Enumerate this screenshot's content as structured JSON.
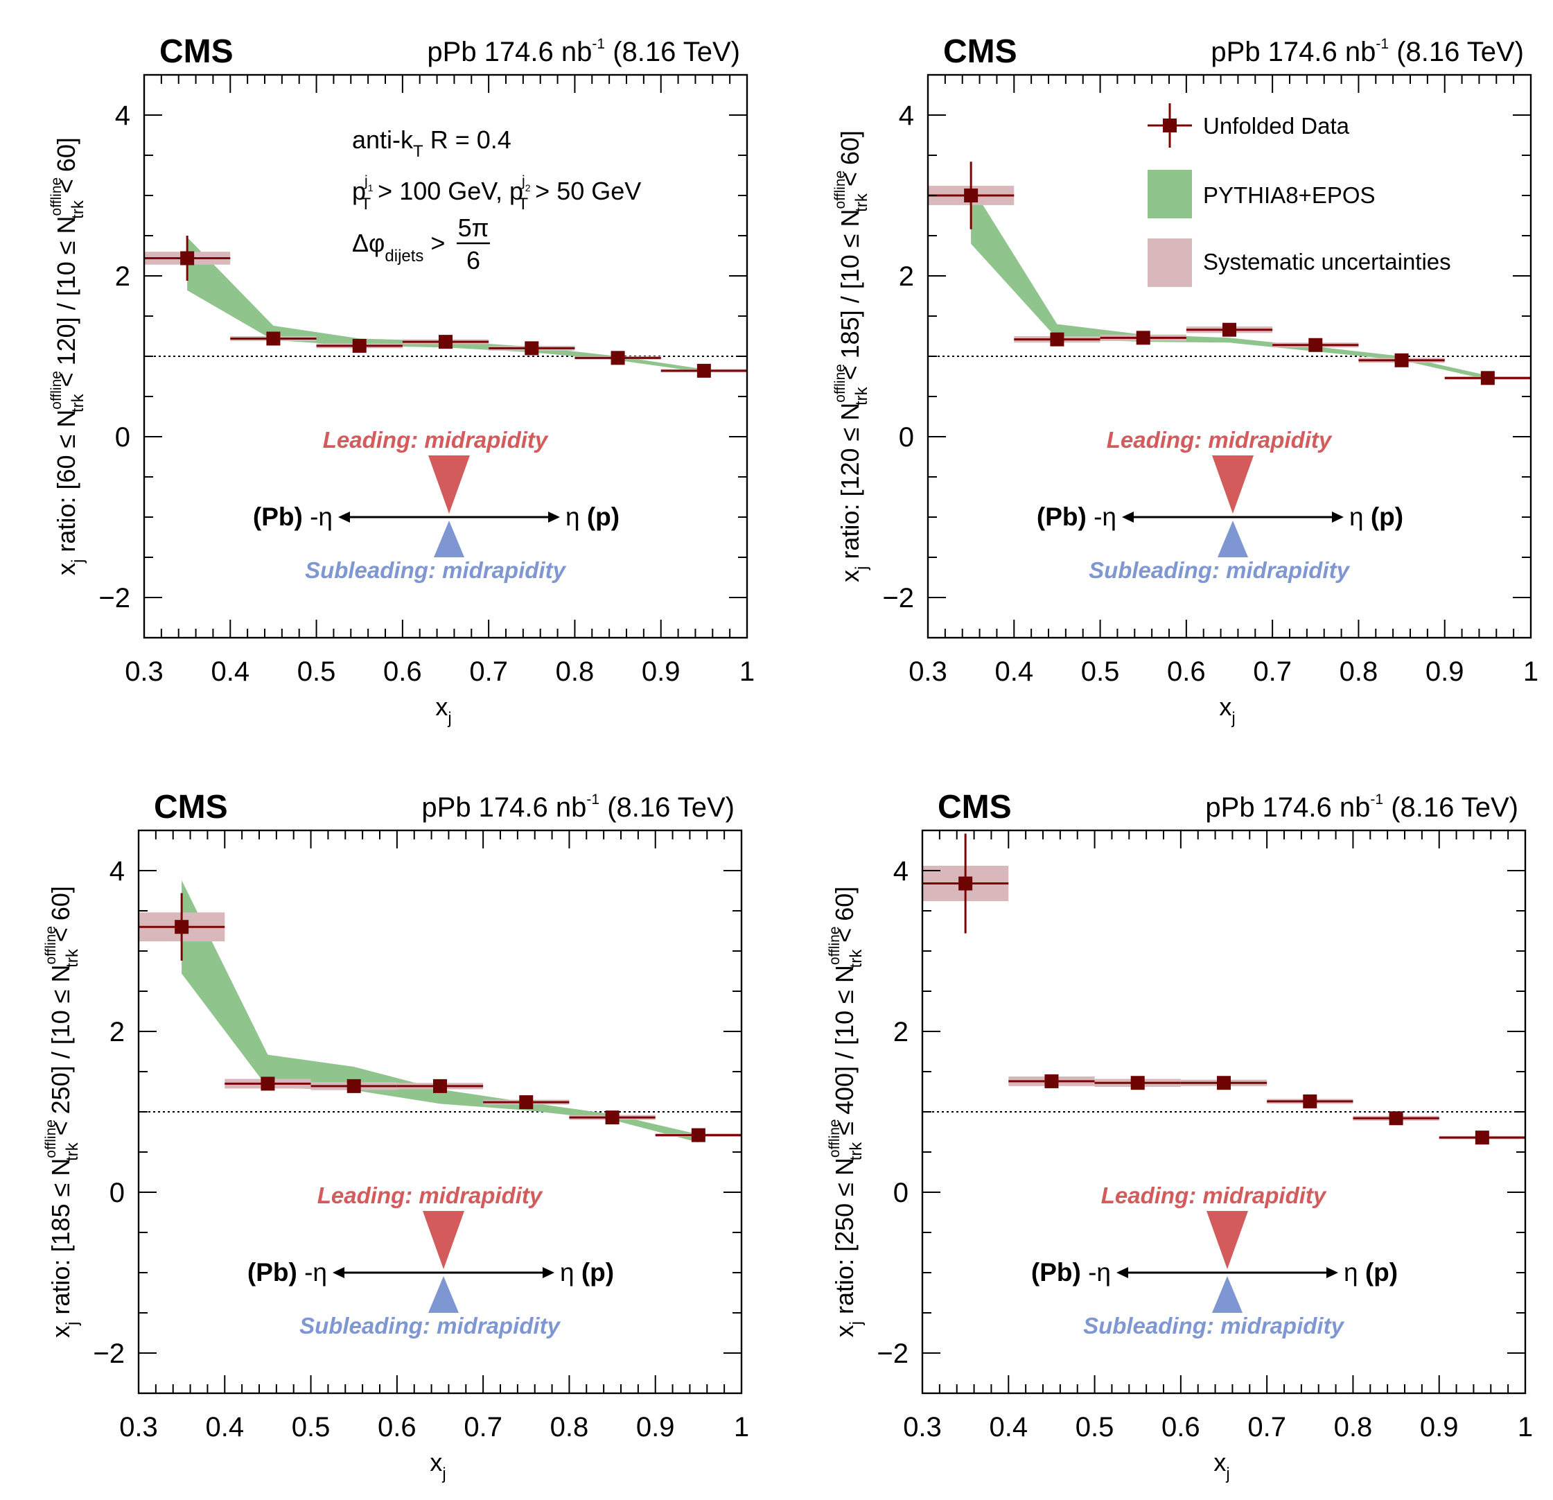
{
  "texts": {
    "cms": "CMS",
    "lumi_pre": "pPb 174.6 nb",
    "lumi_sup": "-1",
    "lumi_post": "(8.16 TeV)",
    "xlabel_main": "x",
    "xlabel_sub": "j",
    "ylabel_panels": [
      [
        "60 ≤ N",
        "offline",
        "trk",
        " < 120] / [10 ≤ N",
        "offline",
        "trk",
        " < 60]"
      ],
      [
        "120 ≤ N",
        "offline",
        "trk",
        " < 185] / [10 ≤ N",
        "offline",
        "trk",
        " < 60]"
      ],
      [
        "185 ≤ N",
        "offline",
        "trk",
        " < 250] / [10 ≤ N",
        "offline",
        "trk",
        " < 60]"
      ],
      [
        "250 ≤ N",
        "offline",
        "trk",
        " ≤ 400] / [10 ≤ N",
        "offline",
        "trk",
        " < 60]"
      ]
    ],
    "ylabel_prefix_main": "x",
    "ylabel_prefix_sub": "j",
    "ylabel_prefix_rest": " ratio: [",
    "jet_algo_pre": "anti-k",
    "jet_algo_sub": "T",
    "jet_algo_post": " R = 0.4",
    "pt_p": "p",
    "pt_sub": "T",
    "pt_sup1": "j",
    "pt_sup1_sub": "1",
    "pt_cut1": " > 100 GeV, ",
    "pt_sup2": "j",
    "pt_sup2_sub": "2",
    "pt_cut2": " > 50 GeV",
    "dphi_pre": "Δφ",
    "dphi_sub": "dijets",
    "dphi_gt": " >",
    "dphi_num": "5π",
    "dphi_den": "6",
    "leading": "Leading: midrapidity",
    "subleading": "Subleading: midrapidity",
    "pb_side_bold": "(Pb)",
    "pb_side_eta": " -η",
    "p_side_eta": "η ",
    "p_side_bold": "(p)"
  },
  "colors": {
    "data": "#6e0303",
    "mc_band": "#8fc48c",
    "syst": "#d9b8bc",
    "leading": "#d35b5b",
    "subleading": "#7e97d2"
  },
  "chart_data": [
    {
      "type": "scatter",
      "xlabel": "x_j",
      "ylabel": "x_j ratio: [60 ≤ N_trk^offline < 120] / [10 ≤ N_trk^offline < 60]",
      "xlim": [
        0.3,
        1.0
      ],
      "ylim": [
        -2.5,
        4.5
      ],
      "xticks": [
        "0.3",
        "0.4",
        "0.5",
        "0.6",
        "0.7",
        "0.8",
        "0.9",
        "1"
      ],
      "yticks": [
        "−2",
        "0",
        "2",
        "4"
      ],
      "reference_line": 1,
      "legend": null,
      "series": [
        {
          "name": "Unfolded Data",
          "x": [
            0.35,
            0.45,
            0.55,
            0.65,
            0.75,
            0.85,
            0.95
          ],
          "y": [
            2.22,
            1.22,
            1.13,
            1.18,
            1.1,
            0.98,
            0.82
          ],
          "yerr": [
            0.28,
            0.05,
            0.04,
            0.04,
            0.04,
            0.03,
            0.03
          ],
          "syst": [
            0.08,
            0.03,
            0.03,
            0.03,
            0.03,
            0.02,
            0.02
          ]
        },
        {
          "name": "PYTHIA8+EPOS",
          "x": [
            0.35,
            0.45,
            0.55,
            0.65,
            0.75,
            0.85,
            0.95
          ],
          "y_low": [
            1.82,
            1.2,
            1.13,
            1.11,
            1.05,
            0.95,
            0.8
          ],
          "y_high": [
            2.48,
            1.38,
            1.22,
            1.19,
            1.12,
            1.0,
            0.84
          ]
        }
      ]
    },
    {
      "type": "scatter",
      "xlabel": "x_j",
      "ylabel": "x_j ratio: [120 ≤ N_trk^offline < 185] / [10 ≤ N_trk^offline < 60]",
      "xlim": [
        0.3,
        1.0
      ],
      "ylim": [
        -2.5,
        4.5
      ],
      "xticks": [
        "0.3",
        "0.4",
        "0.5",
        "0.6",
        "0.7",
        "0.8",
        "0.9",
        "1"
      ],
      "yticks": [
        "−2",
        "0",
        "2",
        "4"
      ],
      "reference_line": 1,
      "legend": {
        "placement": "top-right",
        "entries": [
          "Unfolded Data",
          "PYTHIA8+EPOS",
          "Systematic uncertainties"
        ]
      },
      "series": [
        {
          "name": "Unfolded Data",
          "x": [
            0.35,
            0.45,
            0.55,
            0.65,
            0.75,
            0.85,
            0.95
          ],
          "y": [
            3.0,
            1.21,
            1.23,
            1.33,
            1.14,
            0.95,
            0.73
          ],
          "yerr": [
            0.42,
            0.06,
            0.05,
            0.06,
            0.05,
            0.04,
            0.03
          ],
          "syst": [
            0.12,
            0.04,
            0.04,
            0.04,
            0.03,
            0.03,
            0.02
          ]
        },
        {
          "name": "PYTHIA8+EPOS",
          "x": [
            0.35,
            0.45,
            0.55,
            0.65,
            0.75,
            0.85,
            0.95
          ],
          "y_low": [
            2.4,
            1.22,
            1.18,
            1.17,
            1.06,
            0.95,
            0.71
          ],
          "y_high": [
            3.12,
            1.4,
            1.27,
            1.23,
            1.12,
            1.0,
            0.76
          ]
        }
      ]
    },
    {
      "type": "scatter",
      "xlabel": "x_j",
      "ylabel": "x_j ratio: [185 ≤ N_trk^offline < 250] / [10 ≤ N_trk^offline < 60]",
      "xlim": [
        0.3,
        1.0
      ],
      "ylim": [
        -2.5,
        4.5
      ],
      "xticks": [
        "0.3",
        "0.4",
        "0.5",
        "0.6",
        "0.7",
        "0.8",
        "0.9",
        "1"
      ],
      "yticks": [
        "−2",
        "0",
        "2",
        "4"
      ],
      "reference_line": 1,
      "legend": null,
      "series": [
        {
          "name": "Unfolded Data",
          "x": [
            0.35,
            0.45,
            0.55,
            0.65,
            0.75,
            0.85,
            0.95
          ],
          "y": [
            3.3,
            1.35,
            1.32,
            1.32,
            1.12,
            0.93,
            0.71
          ],
          "yerr": [
            0.42,
            0.07,
            0.06,
            0.06,
            0.05,
            0.04,
            0.03
          ],
          "syst": [
            0.18,
            0.06,
            0.05,
            0.04,
            0.03,
            0.03,
            0.02
          ]
        },
        {
          "name": "PYTHIA8+EPOS",
          "x": [
            0.35,
            0.45,
            0.55,
            0.65,
            0.75,
            0.85,
            0.95
          ],
          "y_low": [
            2.72,
            1.3,
            1.27,
            1.1,
            1.02,
            0.9,
            0.62
          ],
          "y_high": [
            3.88,
            1.71,
            1.56,
            1.28,
            1.12,
            0.97,
            0.72
          ]
        }
      ]
    },
    {
      "type": "scatter",
      "xlabel": "x_j",
      "ylabel": "x_j ratio: [250 ≤ N_trk^offline ≤ 400] / [10 ≤ N_trk^offline < 60]",
      "xlim": [
        0.3,
        1.0
      ],
      "ylim": [
        -2.5,
        4.5
      ],
      "xticks": [
        "0.3",
        "0.4",
        "0.5",
        "0.6",
        "0.7",
        "0.8",
        "0.9",
        "1"
      ],
      "yticks": [
        "−2",
        "0",
        "2",
        "4"
      ],
      "reference_line": 1,
      "legend": null,
      "series": [
        {
          "name": "Unfolded Data",
          "x": [
            0.35,
            0.45,
            0.55,
            0.65,
            0.75,
            0.85,
            0.95
          ],
          "y": [
            3.84,
            1.38,
            1.36,
            1.36,
            1.13,
            0.92,
            0.68
          ],
          "yerr": [
            0.62,
            0.07,
            0.05,
            0.05,
            0.05,
            0.04,
            0.03
          ],
          "syst": [
            0.22,
            0.06,
            0.05,
            0.04,
            0.03,
            0.03,
            0.02
          ]
        }
      ]
    }
  ]
}
